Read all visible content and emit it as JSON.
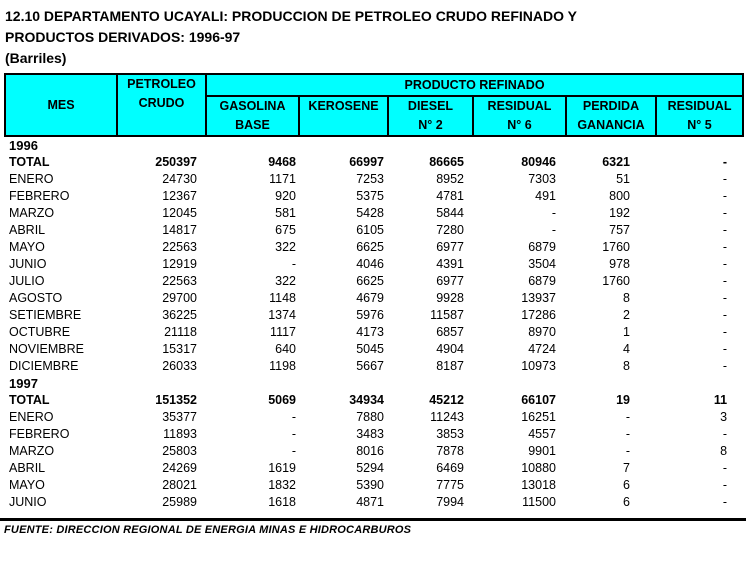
{
  "title": "12.10  DEPARTAMENTO UCAYALI: PRODUCCION DE PETROLEO CRUDO REFINADO Y PRODUCTOS DERIVADOS: 1996-97",
  "subtitle": "(Barriles)",
  "colors": {
    "header_bg": "#00FFFF",
    "border": "#000000",
    "text": "#000000",
    "page_bg": "#FFFFFF"
  },
  "table": {
    "header": {
      "mes": "MES",
      "petroleo_crudo": [
        "PETROLEO",
        "CRUDO"
      ],
      "producto_refinado": "PRODUCTO REFINADO",
      "subcolumns": [
        [
          "GASOLINA",
          "BASE"
        ],
        [
          "KEROSENE",
          ""
        ],
        [
          "DIESEL",
          "N° 2"
        ],
        [
          "RESIDUAL",
          "N° 6"
        ],
        [
          "PERDIDA",
          "GANANCIA"
        ],
        [
          "RESIDUAL",
          "N° 5"
        ]
      ]
    },
    "sections": [
      {
        "year": "1996",
        "rows": [
          {
            "label": "TOTAL",
            "bold": true,
            "values": [
              "250397",
              "9468",
              "66997",
              "86665",
              "80946",
              "6321",
              "-"
            ]
          },
          {
            "label": "ENERO",
            "values": [
              "24730",
              "1171",
              "7253",
              "8952",
              "7303",
              "51",
              "-"
            ]
          },
          {
            "label": "FEBRERO",
            "values": [
              "12367",
              "920",
              "5375",
              "4781",
              "491",
              "800",
              "-"
            ]
          },
          {
            "label": "MARZO",
            "values": [
              "12045",
              "581",
              "5428",
              "5844",
              "-",
              "192",
              "-"
            ]
          },
          {
            "label": "ABRIL",
            "values": [
              "14817",
              "675",
              "6105",
              "7280",
              "-",
              "757",
              "-"
            ]
          },
          {
            "label": "MAYO",
            "values": [
              "22563",
              "322",
              "6625",
              "6977",
              "6879",
              "1760",
              "-"
            ]
          },
          {
            "label": "JUNIO",
            "values": [
              "12919",
              "-",
              "4046",
              "4391",
              "3504",
              "978",
              "-"
            ]
          },
          {
            "label": "JULIO",
            "values": [
              "22563",
              "322",
              "6625",
              "6977",
              "6879",
              "1760",
              "-"
            ]
          },
          {
            "label": "AGOSTO",
            "values": [
              "29700",
              "1148",
              "4679",
              "9928",
              "13937",
              "8",
              "-"
            ]
          },
          {
            "label": "SETIEMBRE",
            "values": [
              "36225",
              "1374",
              "5976",
              "11587",
              "17286",
              "2",
              "-"
            ]
          },
          {
            "label": "OCTUBRE",
            "values": [
              "21118",
              "1117",
              "4173",
              "6857",
              "8970",
              "1",
              "-"
            ]
          },
          {
            "label": "NOVIEMBRE",
            "values": [
              "15317",
              "640",
              "5045",
              "4904",
              "4724",
              "4",
              "-"
            ]
          },
          {
            "label": "DICIEMBRE",
            "values": [
              "26033",
              "1198",
              "5667",
              "8187",
              "10973",
              "8",
              "-"
            ]
          }
        ]
      },
      {
        "year": "1997",
        "rows": [
          {
            "label": "TOTAL",
            "bold": true,
            "values": [
              "151352",
              "5069",
              "34934",
              "45212",
              "66107",
              "19",
              "11"
            ]
          },
          {
            "label": "ENERO",
            "values": [
              "35377",
              "-",
              "7880",
              "11243",
              "16251",
              "-",
              "3"
            ]
          },
          {
            "label": "FEBRERO",
            "values": [
              "11893",
              "-",
              "3483",
              "3853",
              "4557",
              "-",
              "-"
            ]
          },
          {
            "label": "MARZO",
            "values": [
              "25803",
              "-",
              "8016",
              "7878",
              "9901",
              "-",
              "8"
            ]
          },
          {
            "label": "ABRIL",
            "values": [
              "24269",
              "1619",
              "5294",
              "6469",
              "10880",
              "7",
              "-"
            ]
          },
          {
            "label": "MAYO",
            "values": [
              "28021",
              "1832",
              "5390",
              "7775",
              "13018",
              "6",
              "-"
            ]
          },
          {
            "label": "JUNIO",
            "values": [
              "25989",
              "1618",
              "4871",
              "7994",
              "11500",
              "6",
              "-"
            ]
          }
        ]
      }
    ]
  },
  "footer": "FUENTE: DIRECCION REGIONAL DE ENERGIA MINAS E HIDROCARBUROS"
}
